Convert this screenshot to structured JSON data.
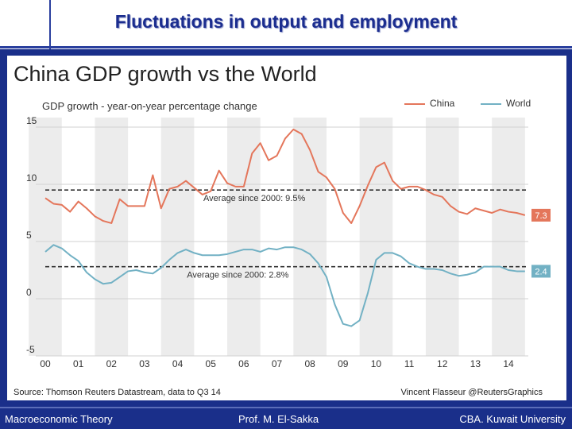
{
  "slide": {
    "title": "Fluctuations in output and employment",
    "footer_left": "Macroeconomic Theory",
    "footer_center": "Prof. M. El-Sakka",
    "footer_right": "CBA. Kuwait University"
  },
  "chart_data": {
    "type": "line",
    "title": "China GDP growth vs the World",
    "subtitle": "GDP growth - year-on-year percentage change",
    "ylim": [
      -5,
      15
    ],
    "yticks": [
      -5,
      0,
      5,
      10,
      15
    ],
    "xlim": [
      2000,
      2014.6
    ],
    "xtick_values": [
      2000,
      2001,
      2002,
      2003,
      2004,
      2005,
      2006,
      2007,
      2008,
      2009,
      2010,
      2011,
      2012,
      2013,
      2014
    ],
    "xtick_labels": [
      "00",
      "01",
      "02",
      "03",
      "04",
      "05",
      "06",
      "07",
      "08",
      "09",
      "10",
      "11",
      "12",
      "13",
      "14"
    ],
    "shaded_years": [
      2000,
      2002,
      2004,
      2006,
      2008,
      2010,
      2012,
      2014
    ],
    "series": [
      {
        "name": "China",
        "color": "#e4765b",
        "end_label": "7.3",
        "x": [
          2000,
          2000.25,
          2000.5,
          2000.75,
          2001,
          2001.25,
          2001.5,
          2001.75,
          2002,
          2002.25,
          2002.5,
          2002.75,
          2003,
          2003.25,
          2003.5,
          2003.75,
          2004,
          2004.25,
          2004.5,
          2004.75,
          2005,
          2005.25,
          2005.5,
          2005.75,
          2006,
          2006.25,
          2006.5,
          2006.75,
          2007,
          2007.25,
          2007.5,
          2007.75,
          2008,
          2008.25,
          2008.5,
          2008.75,
          2009,
          2009.25,
          2009.5,
          2009.75,
          2010,
          2010.25,
          2010.5,
          2010.75,
          2011,
          2011.25,
          2011.5,
          2011.75,
          2012,
          2012.25,
          2012.5,
          2012.75,
          2013,
          2013.25,
          2013.5,
          2013.75,
          2014,
          2014.25,
          2014.5
        ],
        "y": [
          8.8,
          8.3,
          8.2,
          7.6,
          8.5,
          7.9,
          7.2,
          6.8,
          6.6,
          8.7,
          8.1,
          8.1,
          8.1,
          10.8,
          7.9,
          9.6,
          9.8,
          10.3,
          9.7,
          9.1,
          9.4,
          11.2,
          10.1,
          9.8,
          9.8,
          12.7,
          13.6,
          12.1,
          12.5,
          14.0,
          14.8,
          14.4,
          13.0,
          11.1,
          10.6,
          9.6,
          7.5,
          6.6,
          8.1,
          9.9,
          11.5,
          11.9,
          10.3,
          9.6,
          9.8,
          9.8,
          9.5,
          9.1,
          8.9,
          8.1,
          7.6,
          7.4,
          7.9,
          7.7,
          7.5,
          7.8,
          7.6,
          7.5,
          7.3
        ]
      },
      {
        "name": "World",
        "color": "#72b1c4",
        "end_label": "2.4",
        "x": [
          2000,
          2000.25,
          2000.5,
          2000.75,
          2001,
          2001.25,
          2001.5,
          2001.75,
          2002,
          2002.25,
          2002.5,
          2002.75,
          2003,
          2003.25,
          2003.5,
          2003.75,
          2004,
          2004.25,
          2004.5,
          2004.75,
          2005,
          2005.25,
          2005.5,
          2005.75,
          2006,
          2006.25,
          2006.5,
          2006.75,
          2007,
          2007.25,
          2007.5,
          2007.75,
          2008,
          2008.25,
          2008.5,
          2008.75,
          2009,
          2009.25,
          2009.5,
          2009.75,
          2010,
          2010.25,
          2010.5,
          2010.75,
          2011,
          2011.25,
          2011.5,
          2011.75,
          2012,
          2012.25,
          2012.5,
          2012.75,
          2013,
          2013.25,
          2013.5,
          2013.75,
          2014,
          2014.25,
          2014.5
        ],
        "y": [
          4.1,
          4.7,
          4.4,
          3.8,
          3.3,
          2.3,
          1.7,
          1.3,
          1.4,
          1.9,
          2.4,
          2.5,
          2.3,
          2.2,
          2.7,
          3.4,
          4.0,
          4.3,
          4.0,
          3.8,
          3.8,
          3.8,
          3.9,
          4.1,
          4.3,
          4.3,
          4.1,
          4.4,
          4.3,
          4.5,
          4.5,
          4.3,
          3.9,
          3.1,
          1.9,
          -0.5,
          -2.2,
          -2.4,
          -1.9,
          0.5,
          3.4,
          4.0,
          4.0,
          3.7,
          3.1,
          2.8,
          2.6,
          2.6,
          2.5,
          2.2,
          2.0,
          2.1,
          2.3,
          2.8,
          2.8,
          2.8,
          2.5,
          2.4,
          2.4
        ]
      }
    ],
    "reference_lines": [
      {
        "name": "china-average",
        "value": 9.5,
        "label": "Average since 2000: 9.5%",
        "label_x": 2005.5
      },
      {
        "name": "world-average",
        "value": 2.8,
        "label": "Average since 2000: 2.8%",
        "label_x": 2005.0
      }
    ],
    "source": "Source: Thomson Reuters Datastream, data to Q3 14",
    "credit": "Vincent Flasseur @ReutersGraphics"
  }
}
